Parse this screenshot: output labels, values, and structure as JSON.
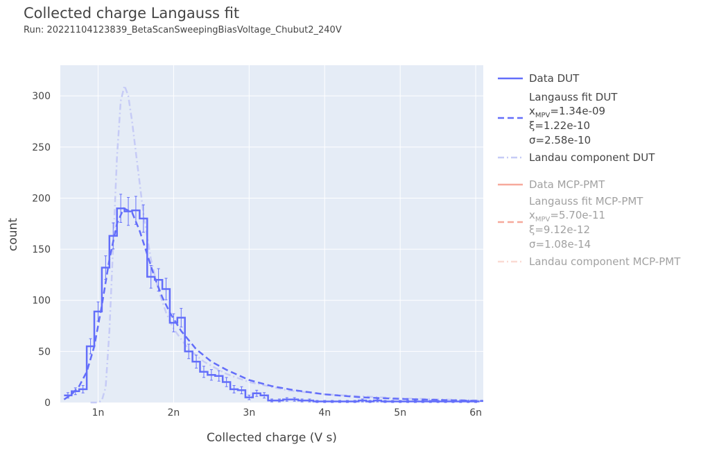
{
  "header": {
    "title": "Collected charge Langauss fit",
    "subtitle": "Run: 20221104123839_BetaScanSweepingBiasVoltage_Chubut2_240V"
  },
  "colors": {
    "plot_bg": "#e5ecf6",
    "dut": "#636efa",
    "dut_landau": "#c6cbf6",
    "mcp": "#ef553b",
    "grid": "#ffffff"
  },
  "legend": {
    "data_dut": "Data DUT",
    "fit_dut": "Langauss fit DUT",
    "fit_dut_xmpv_prefix": "x",
    "fit_dut_xmpv_sub": "MPV",
    "fit_dut_xmpv_value": "=1.34e-09",
    "fit_dut_xi": "ξ=1.22e-10",
    "fit_dut_sigma": "σ=2.58e-10",
    "landau_dut": "Landau component DUT",
    "data_mcp": "Data MCP-PMT",
    "fit_mcp": "Langauss fit MCP-PMT",
    "fit_mcp_xmpv_prefix": "x",
    "fit_mcp_xmpv_sub": "MPV",
    "fit_mcp_xmpv_value": "=5.70e-11",
    "fit_mcp_xi": "ξ=9.12e-12",
    "fit_mcp_sigma": "σ=1.08e-14",
    "landau_mcp": "Landau component MCP-PMT"
  },
  "chart_data": {
    "type": "line",
    "xlabel": "Collected charge (V s)",
    "ylabel": "count",
    "xlim": [
      5e-10,
      6.1e-09
    ],
    "ylim": [
      0,
      330
    ],
    "xticks": [
      1e-09,
      2e-09,
      3e-09,
      4e-09,
      5e-09,
      6e-09
    ],
    "xtick_labels": [
      "1n",
      "2n",
      "3n",
      "4n",
      "5n",
      "6n"
    ],
    "yticks": [
      0,
      50,
      100,
      150,
      200,
      250,
      300
    ],
    "ytick_labels": [
      "0",
      "50",
      "100",
      "150",
      "200",
      "250",
      "300"
    ],
    "grid": true,
    "legend_position": "right",
    "series": [
      {
        "name": "Data DUT",
        "kind": "histogram",
        "bin_width": 1e-10,
        "x": [
          6e-10,
          7e-10,
          8e-10,
          9e-10,
          1e-09,
          1.1e-09,
          1.2e-09,
          1.3e-09,
          1.4e-09,
          1.5e-09,
          1.6e-09,
          1.7e-09,
          1.8e-09,
          1.9e-09,
          2e-09,
          2.1e-09,
          2.2e-09,
          2.3e-09,
          2.4e-09,
          2.5e-09,
          2.6e-09,
          2.7e-09,
          2.8e-09,
          2.9e-09,
          3e-09,
          3.1e-09,
          3.2e-09,
          3.3e-09,
          3.4e-09,
          3.5e-09,
          3.6e-09,
          3.7e-09,
          3.8e-09,
          3.9e-09,
          4e-09,
          4.1e-09,
          4.2e-09,
          4.3e-09,
          4.4e-09,
          4.5e-09,
          4.6e-09,
          4.7e-09,
          4.8e-09,
          4.9e-09,
          5e-09,
          5.1e-09,
          5.2e-09,
          5.3e-09,
          5.4e-09,
          5.5e-09,
          5.6e-09,
          5.7e-09,
          5.8e-09,
          5.9e-09,
          6e-09
        ],
        "values": [
          7,
          11,
          13,
          55,
          89,
          132,
          163,
          190,
          187,
          188,
          180,
          123,
          120,
          111,
          78,
          83,
          50,
          40,
          30,
          27,
          26,
          20,
          13,
          12,
          5,
          9,
          7,
          2,
          2,
          3,
          3,
          2,
          2,
          1,
          1,
          1,
          1,
          1,
          1,
          2,
          1,
          2,
          1,
          1,
          1,
          1,
          1,
          1,
          1,
          1,
          1,
          1,
          1,
          1,
          1
        ],
        "error_bars": true
      },
      {
        "name": "Langauss fit DUT",
        "kind": "dashed",
        "x": [
          5.5e-10,
          6.5e-10,
          7.5e-10,
          8.5e-10,
          9.5e-10,
          1.05e-09,
          1.15e-09,
          1.25e-09,
          1.34e-09,
          1.45e-09,
          1.55e-09,
          1.65e-09,
          1.75e-09,
          1.85e-09,
          1.95e-09,
          2.1e-09,
          2.3e-09,
          2.5e-09,
          2.7e-09,
          3e-09,
          3.3e-09,
          3.6e-09,
          4e-09,
          4.5e-09,
          5e-09,
          5.5e-09,
          6.1e-09
        ],
        "values": [
          3,
          8,
          16,
          30,
          55,
          95,
          140,
          175,
          190,
          186,
          168,
          145,
          122,
          103,
          88,
          70,
          52,
          40,
          32,
          22,
          16,
          12,
          8,
          5,
          3.5,
          2.5,
          1.5
        ]
      },
      {
        "name": "Landau component DUT",
        "kind": "dashdot",
        "x": [
          9e-10,
          1e-09,
          1.05e-09,
          1.1e-09,
          1.15e-09,
          1.2e-09,
          1.25e-09,
          1.3e-09,
          1.35e-09,
          1.4e-09,
          1.45e-09,
          1.5e-09,
          1.55e-09,
          1.6e-09,
          1.7e-09,
          1.8e-09,
          1.9e-09,
          2e-09,
          2.2e-09,
          2.4e-09,
          2.7e-09,
          3e-09,
          3.5e-09,
          4e-09,
          5e-09,
          6.1e-09
        ],
        "values": [
          0,
          0,
          2,
          15,
          70,
          155,
          240,
          295,
          310,
          300,
          275,
          245,
          215,
          185,
          140,
          110,
          88,
          72,
          52,
          40,
          28,
          20,
          12,
          8,
          4,
          2
        ]
      }
    ]
  }
}
